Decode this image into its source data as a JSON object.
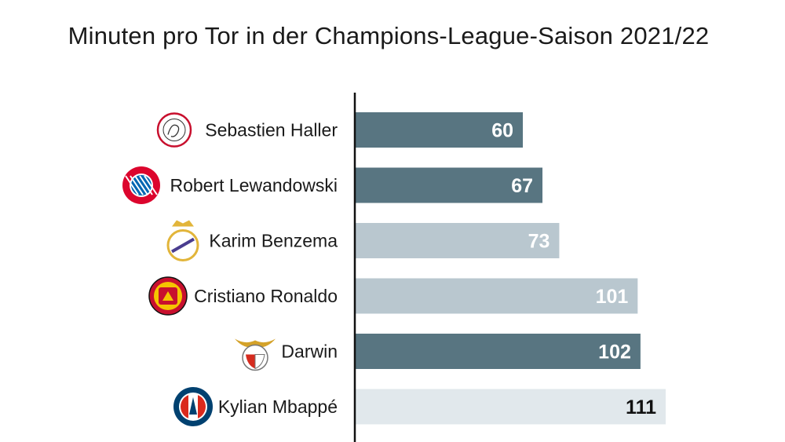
{
  "chart_data": {
    "type": "bar",
    "orientation": "horizontal",
    "title": "Minuten pro Tor in der Champions-League-Saison 2021/22",
    "categories": [
      "Sebastien Haller",
      "Robert Lewandowski",
      "Karim Benzema",
      "Cristiano Ronaldo",
      "Darwin",
      "Kylian Mbappé"
    ],
    "values": [
      60,
      67,
      73,
      101,
      102,
      111
    ],
    "bar_colors": [
      "#587581",
      "#587581",
      "#b9c7cf",
      "#b9c7cf",
      "#587581",
      "#e1e8ec"
    ],
    "label_colors": [
      "#ffffff",
      "#ffffff",
      "#ffffff",
      "#ffffff",
      "#ffffff",
      "#111111"
    ],
    "club_icons": [
      "ajax-logo-icon",
      "bayern-logo-icon",
      "real-madrid-logo-icon",
      "manchester-united-logo-icon",
      "benfica-logo-icon",
      "psg-logo-icon"
    ],
    "xlim": [
      0,
      111
    ],
    "grid": false,
    "legend": "none"
  }
}
